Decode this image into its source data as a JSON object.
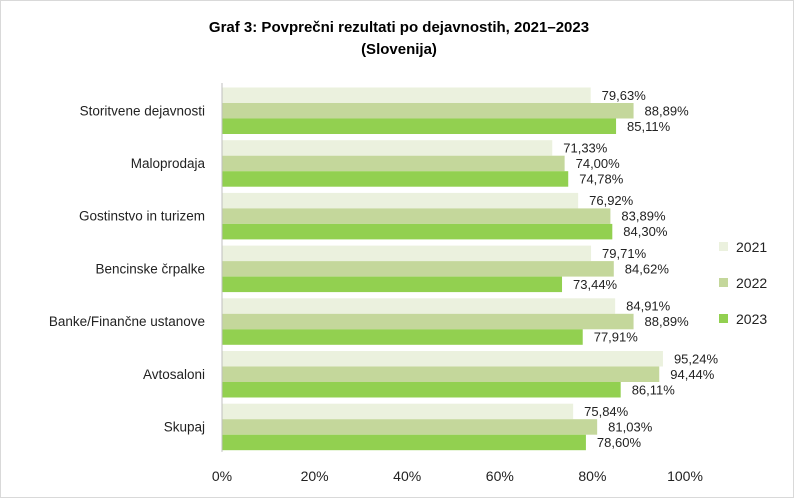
{
  "chart_data": {
    "type": "bar",
    "orientation": "horizontal",
    "title": "Graf 3: Povprečni rezultati po dejavnostih, 2021–2023",
    "subtitle": "(Slovenija)",
    "categories": [
      "Storitvene dejavnosti",
      "Maloprodaja",
      "Gostinstvo in turizem",
      "Bencinske črpalke",
      "Banke/Finančne ustanove",
      "Avtosaloni",
      "Skupaj"
    ],
    "series": [
      {
        "name": "2021",
        "color": "#ebf1de",
        "values": [
          79.63,
          71.33,
          76.92,
          79.71,
          84.91,
          95.24,
          75.84
        ],
        "labels": [
          "79,63%",
          "71,33%",
          "76,92%",
          "79,71%",
          "84,91%",
          "95,24%",
          "75,84%"
        ]
      },
      {
        "name": "2022",
        "color": "#c4d79b",
        "values": [
          88.89,
          74.0,
          83.89,
          84.62,
          88.89,
          94.44,
          81.03
        ],
        "labels": [
          "88,89%",
          "74,00%",
          "83,89%",
          "84,62%",
          "88,89%",
          "94,44%",
          "81,03%"
        ]
      },
      {
        "name": "2023",
        "color": "#92d050",
        "values": [
          85.11,
          74.78,
          84.3,
          73.44,
          77.91,
          86.11,
          78.6
        ],
        "labels": [
          "85,11%",
          "74,78%",
          "84,30%",
          "73,44%",
          "77,91%",
          "86,11%",
          "78,60%"
        ]
      }
    ],
    "xlim": [
      0,
      100
    ],
    "xticks": [
      0,
      20,
      40,
      60,
      80,
      100
    ],
    "xtick_labels": [
      "0%",
      "20%",
      "40%",
      "60%",
      "80%",
      "100%"
    ],
    "grid": false,
    "legend": "right"
  }
}
